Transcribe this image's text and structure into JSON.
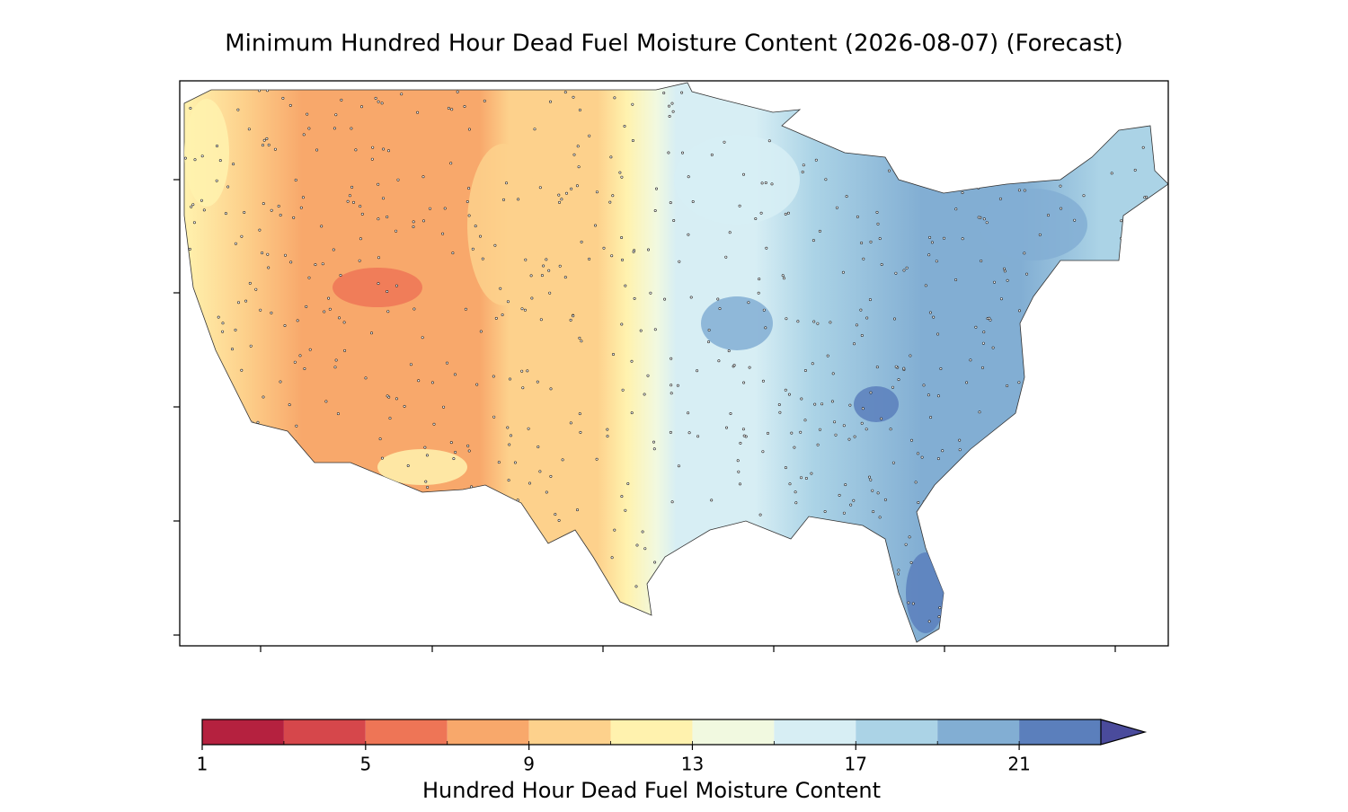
{
  "chart_data": {
    "type": "map",
    "title": "Minimum Hundred Hour Dead Fuel Moisture Content (2026-08-07) (Forecast)",
    "colorbar": {
      "label": "Hundred Hour Dead Fuel Moisture Content",
      "levels": [
        1,
        3,
        5,
        7,
        9,
        11,
        13,
        15,
        17,
        19,
        21,
        23
      ],
      "colors": [
        "#b5213f",
        "#d6474b",
        "#ee7556",
        "#f8a86b",
        "#fdd18c",
        "#fff2ae",
        "#f1f9e0",
        "#d7eef4",
        "#abd3e6",
        "#82aed3",
        "#5b7fbc"
      ],
      "extend_color": "#4a4b9c",
      "ticks": [
        1,
        5,
        9,
        13,
        17,
        21
      ]
    }
  }
}
